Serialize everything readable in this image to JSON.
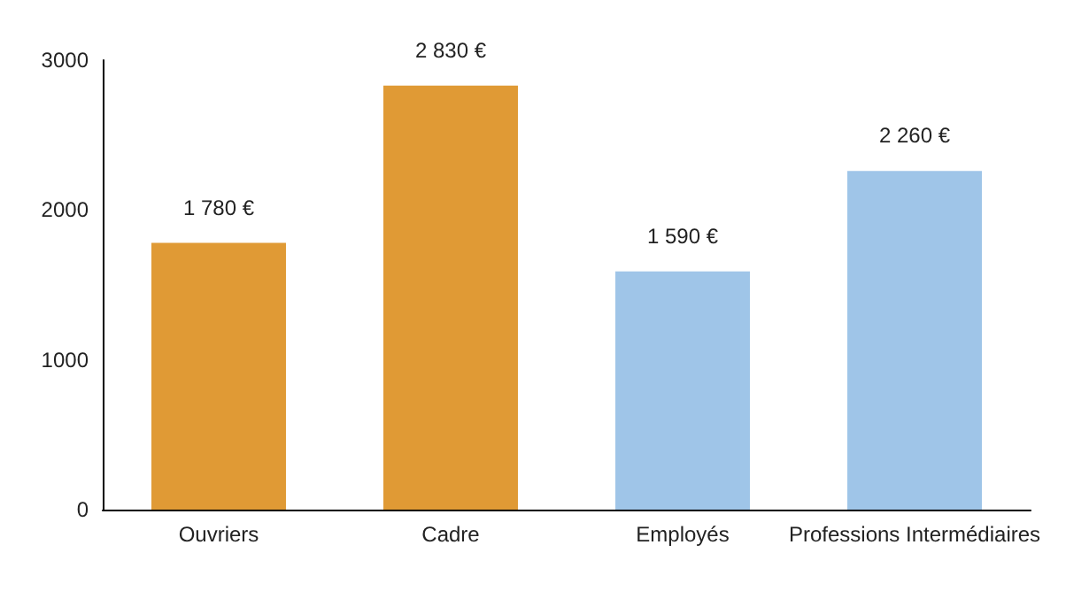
{
  "chart_data": {
    "type": "bar",
    "categories": [
      "Ouvriers",
      "Cadre",
      "Employés",
      "Professions Intermédiaires"
    ],
    "values": [
      1780,
      2830,
      1590,
      2260
    ],
    "colors": [
      "#e09a35",
      "#e09a35",
      "#9fc5e8",
      "#9fc5e8"
    ],
    "value_labels": [
      "1 780 €",
      "2 830 €",
      "1 590 €",
      "2 260 €"
    ],
    "ylim": [
      0,
      3000
    ],
    "yticks": [
      0,
      1000,
      2000,
      3000
    ],
    "grid": false
  }
}
